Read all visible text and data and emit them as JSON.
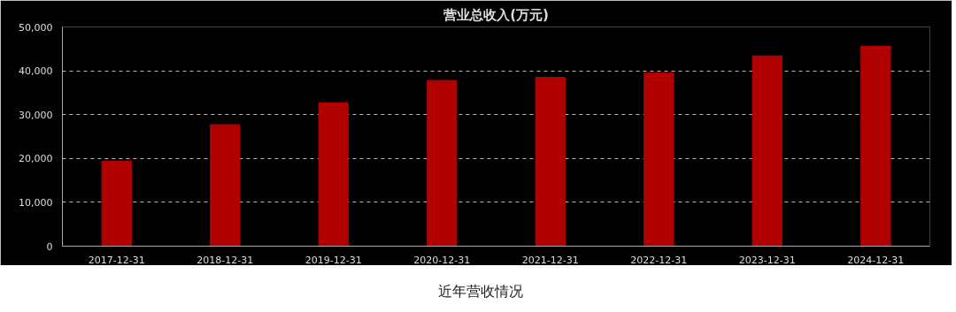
{
  "chart_data": {
    "type": "bar",
    "title": "营业总收入(万元)",
    "categories": [
      "2017-12-31",
      "2018-12-31",
      "2019-12-31",
      "2020-12-31",
      "2021-12-31",
      "2022-12-31",
      "2023-12-31",
      "2024-12-31"
    ],
    "values": [
      19500,
      27800,
      32800,
      37900,
      38600,
      39600,
      43500,
      45700
    ],
    "color": "#b00000",
    "ylim": [
      0,
      50000
    ],
    "yticks": [
      0,
      {
        "value": 10000,
        "label": "10,000"
      },
      {
        "value": 20000,
        "label": "20,000"
      },
      {
        "value": 30000,
        "label": "30,000"
      },
      {
        "value": 40000,
        "label": "40,000"
      },
      {
        "value": 50000,
        "label": "50,000"
      }
    ],
    "grid": "y",
    "annotations": [
      "近年营收情况"
    ]
  }
}
